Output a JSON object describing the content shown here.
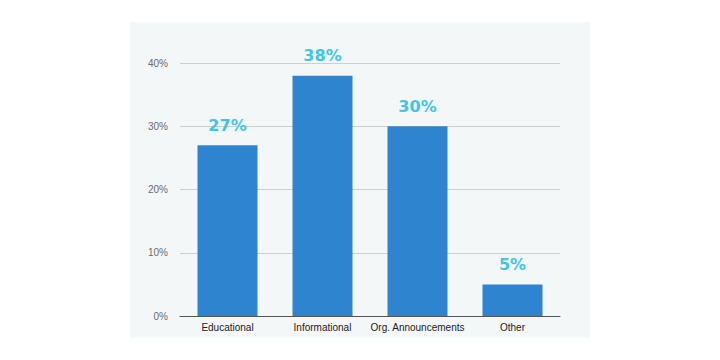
{
  "chart_data": {
    "type": "bar",
    "categories": [
      "Educational",
      "Informational",
      "Org. Announcements",
      "Other"
    ],
    "values": [
      27,
      38,
      30,
      5
    ],
    "value_labels": [
      "27%",
      "38%",
      "30%",
      "5%"
    ],
    "color": "#2e84cf",
    "ylim": [
      0,
      40
    ],
    "yticks": [
      {
        "value": 0,
        "label": "0%"
      },
      {
        "value": 10,
        "label": "10%"
      },
      {
        "value": 20,
        "label": "20%"
      },
      {
        "value": 30,
        "label": "30%"
      },
      {
        "value": 40,
        "label": "40%"
      }
    ],
    "grid": true,
    "data_labels": true
  }
}
